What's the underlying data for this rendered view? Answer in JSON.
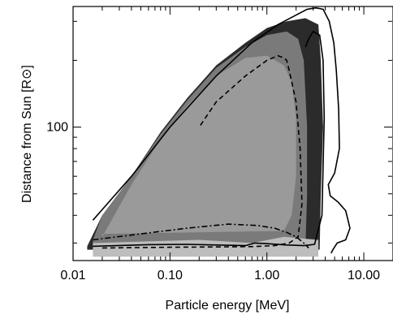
{
  "chart_data": {
    "type": "heatmap",
    "title": "",
    "xlabel": "Particle energy [MeV]",
    "ylabel": "Distance from Sun [R⊙]",
    "xscale": "log",
    "yscale": "log",
    "xlim": [
      0.01,
      20
    ],
    "ylim": [
      25,
      350
    ],
    "x_ticks": [
      0.01,
      0.1,
      1.0,
      10.0
    ],
    "x_tick_labels": [
      "0.01",
      "0.10",
      "1.00",
      "10.00"
    ],
    "y_ticks": [
      100
    ],
    "y_tick_labels": [
      "100"
    ],
    "grid": false,
    "legend": "none",
    "fill_levels": [
      {
        "level": "dark",
        "color": "#2b2b2b",
        "outline": [
          [
            0.014,
            29
          ],
          [
            0.02,
            40
          ],
          [
            0.04,
            60
          ],
          [
            0.08,
            95
          ],
          [
            0.15,
            135
          ],
          [
            0.3,
            190
          ],
          [
            0.6,
            240
          ],
          [
            1.0,
            280
          ],
          [
            1.6,
            300
          ],
          [
            2.5,
            310
          ],
          [
            3.4,
            290
          ],
          [
            3.6,
            200
          ],
          [
            3.8,
            100
          ],
          [
            3.6,
            50
          ],
          [
            3.5,
            28
          ],
          [
            0.014,
            28
          ]
        ]
      },
      {
        "level": "mid",
        "color": "#7a7a7a",
        "outline": [
          [
            0.016,
            31
          ],
          [
            0.02,
            40
          ],
          [
            0.04,
            60
          ],
          [
            0.08,
            93
          ],
          [
            0.15,
            132
          ],
          [
            0.3,
            185
          ],
          [
            0.6,
            230
          ],
          [
            1.0,
            260
          ],
          [
            1.6,
            270
          ],
          [
            2.1,
            250
          ],
          [
            2.4,
            200
          ],
          [
            2.6,
            100
          ],
          [
            2.6,
            50
          ],
          [
            2.5,
            29
          ],
          [
            0.016,
            29
          ]
        ]
      },
      {
        "level": "light",
        "color": "#9a9a9a",
        "outline": [
          [
            0.02,
            32
          ],
          [
            0.04,
            55
          ],
          [
            0.08,
            88
          ],
          [
            0.15,
            125
          ],
          [
            0.3,
            170
          ],
          [
            0.6,
            205
          ],
          [
            1.0,
            210
          ],
          [
            1.5,
            190
          ],
          [
            1.8,
            160
          ],
          [
            2.0,
            110
          ],
          [
            2.0,
            60
          ],
          [
            1.8,
            40
          ],
          [
            1.5,
            34
          ],
          [
            0.02,
            33
          ]
        ]
      },
      {
        "level": "floor",
        "color": "#bdbdbd",
        "outline": [
          [
            0.016,
            26
          ],
          [
            3.4,
            26
          ],
          [
            3.4,
            31
          ],
          [
            1.5,
            32
          ],
          [
            0.7,
            30
          ],
          [
            0.2,
            31
          ],
          [
            0.016,
            30
          ]
        ]
      }
    ],
    "contours": [
      {
        "style": "solid",
        "label": "outer",
        "x": [
          0.016,
          0.04,
          0.1,
          0.3,
          0.7,
          1.3,
          2.0,
          2.6,
          3.2,
          3.8,
          4.4,
          4.9,
          5.2,
          5.5,
          5.6,
          5.0,
          4.3,
          4.5,
          5.4,
          6.5,
          7.2,
          6.5,
          5.3,
          4.8,
          4.6
        ],
        "y": [
          38,
          60,
          100,
          170,
          240,
          290,
          320,
          340,
          345,
          340,
          300,
          240,
          180,
          120,
          80,
          62,
          55,
          49,
          46,
          42,
          35,
          31,
          30,
          28,
          27
        ]
      },
      {
        "style": "solid",
        "label": "inner",
        "x": [
          0.016,
          0.06,
          0.15,
          0.3,
          0.6,
          0.75,
          1.0,
          1.6,
          2.4,
          3.1,
          3.7,
          3.9,
          3.8,
          3.5,
          3.0,
          2.7,
          2.5
        ],
        "y": [
          29,
          29.5,
          29.6,
          29.4,
          29.2,
          30,
          29.8,
          29.4,
          29.2,
          29.6,
          40,
          110,
          200,
          260,
          270,
          250,
          230
        ]
      },
      {
        "style": "dashed",
        "label": "dashed",
        "x": [
          0.02,
          0.1,
          0.3,
          0.7,
          1.2,
          1.7,
          2.1,
          2.3,
          2.2,
          2.0,
          1.7,
          1.6,
          1.5,
          1.3,
          1.0,
          0.6,
          0.3,
          0.2
        ],
        "y": [
          28.5,
          28.7,
          28.8,
          28.9,
          29.2,
          30,
          32,
          45,
          80,
          130,
          180,
          200,
          205,
          210,
          200,
          170,
          130,
          100
        ]
      },
      {
        "style": "dashdot",
        "label": "dash-dot",
        "x": [
          0.016,
          0.05,
          0.15,
          0.4,
          0.8,
          1.2,
          1.6,
          2.0,
          2.4,
          2.7
        ],
        "y": [
          31,
          33,
          35,
          36.5,
          36,
          35,
          33.5,
          32,
          30,
          28.5
        ]
      }
    ]
  }
}
